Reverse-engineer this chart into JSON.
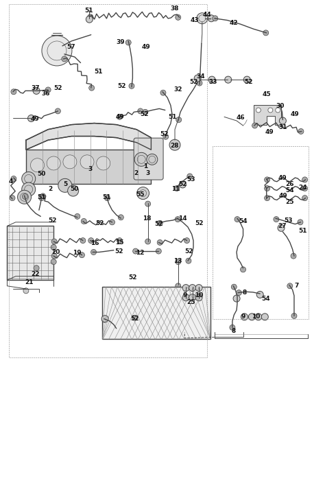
{
  "bg_color": "#ffffff",
  "line_color": "#444444",
  "fig_width": 4.74,
  "fig_height": 7.04,
  "dpi": 100
}
